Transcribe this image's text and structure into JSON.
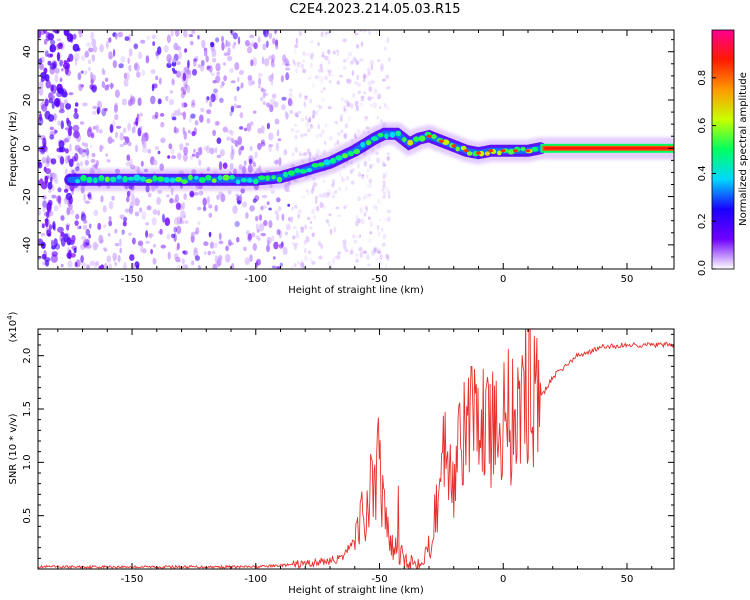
{
  "title": "C2E4.2023.214.05.03.R15",
  "chart_data": [
    {
      "id": "spectrogram",
      "type": "heatmap",
      "xlabel": "Height of straight line (km)",
      "ylabel": "Frequency (Hz)",
      "xlim": [
        -188,
        69
      ],
      "ylim": [
        -50,
        49
      ],
      "xticks": [
        -150,
        -100,
        -50,
        0,
        50
      ],
      "yticks": [
        -40,
        -20,
        0,
        20,
        40
      ],
      "ridge": {
        "description": "frequency of peak spectral amplitude vs height",
        "x": [
          -175,
          -150,
          -125,
          -100,
          -90,
          -80,
          -70,
          -60,
          -52,
          -48,
          -43,
          -38,
          -34,
          -30,
          -25,
          -20,
          -15,
          -10,
          -5,
          0,
          5,
          10,
          15,
          20,
          30,
          40,
          50,
          60,
          69
        ],
        "y": [
          -13,
          -13,
          -13,
          -13,
          -12,
          -9,
          -6,
          -1,
          4,
          6,
          6,
          2,
          4,
          5,
          3,
          1,
          -1,
          -2,
          -1,
          -1,
          -1,
          -1,
          0,
          0,
          0,
          0,
          0,
          0,
          0
        ]
      },
      "colorbar": {
        "label": "Normalized spectral amplitude",
        "range": [
          0.0,
          1.0
        ],
        "ticks": [
          "0.0",
          "0.2",
          "0.4",
          "0.6",
          "0.8"
        ],
        "stops": [
          "#ffffff",
          "#7000ff",
          "#1a00ff",
          "#00d8ff",
          "#00ff60",
          "#c8ff00",
          "#ff9a00",
          "#ff1a00",
          "#ff0090"
        ]
      }
    },
    {
      "id": "snr",
      "type": "line",
      "xlabel": "Height of straight line (km)",
      "ylabel": "SNR (10 * v/v)",
      "scale_label": "(x10",
      "scale_exp": "4",
      "scale_close": ")",
      "xlim": [
        -188,
        69
      ],
      "ylim": [
        0,
        2.25
      ],
      "xticks": [
        -150,
        -100,
        -50,
        0,
        50
      ],
      "yticks": [
        "0.5",
        "1.0",
        "1.5",
        "2.0"
      ],
      "color": "#e8302c",
      "series": [
        {
          "name": "SNR",
          "x": [
            -188,
            -100,
            -85,
            -75,
            -65,
            -60,
            -55,
            -52,
            -50,
            -48,
            -45,
            -40,
            -35,
            -30,
            -27,
            -25,
            -22,
            -20,
            -15,
            -10,
            -5,
            0,
            3,
            5,
            8,
            10,
            15,
            20,
            25,
            30,
            40,
            50,
            60,
            69
          ],
          "y": [
            0.02,
            0.02,
            0.04,
            0.06,
            0.1,
            0.3,
            0.6,
            0.9,
            1.0,
            0.5,
            0.2,
            0.1,
            0.05,
            0.2,
            0.6,
            0.9,
            1.2,
            0.9,
            1.3,
            1.35,
            1.45,
            1.4,
            1.5,
            1.3,
            1.6,
            1.8,
            1.6,
            1.8,
            1.9,
            2.0,
            2.08,
            2.1,
            2.1,
            2.1
          ]
        }
      ]
    }
  ]
}
